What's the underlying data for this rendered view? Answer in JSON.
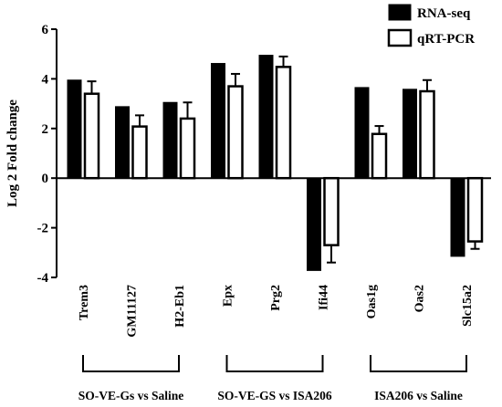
{
  "chart_data": {
    "type": "bar",
    "ylabel": "Log 2 Fold change",
    "ylim": [
      -4,
      6
    ],
    "yticks": [
      "-4",
      "-2",
      "0",
      "2",
      "4",
      "6"
    ],
    "categories": [
      "Trem3",
      "GM11127",
      "H2-Eb1",
      "Epx",
      "Prg2",
      "Ifi44",
      "Oas1g",
      "Oas2",
      "Slc15a2"
    ],
    "series": [
      {
        "name": "RNA-seq",
        "color": "#000000",
        "values": [
          3.95,
          2.88,
          3.05,
          4.62,
          4.95,
          -3.72,
          3.65,
          3.58,
          -3.15
        ],
        "errors": null
      },
      {
        "name": "qRT-PCR",
        "color": "#ffffff",
        "values": [
          3.4,
          2.08,
          2.4,
          3.7,
          4.48,
          -2.7,
          1.78,
          3.5,
          -2.55
        ],
        "errors": [
          0.5,
          0.45,
          0.65,
          0.5,
          0.42,
          0.7,
          0.32,
          0.45,
          0.3
        ]
      }
    ],
    "groups": [
      {
        "label": "SO-VE-Gs vs Saline",
        "span": [
          0,
          2
        ]
      },
      {
        "label": "SO-VE-GS vs ISA206",
        "span": [
          3,
          5
        ]
      },
      {
        "label": "ISA206 vs Saline",
        "span": [
          6,
          8
        ]
      }
    ],
    "legend_position": "top-right"
  }
}
